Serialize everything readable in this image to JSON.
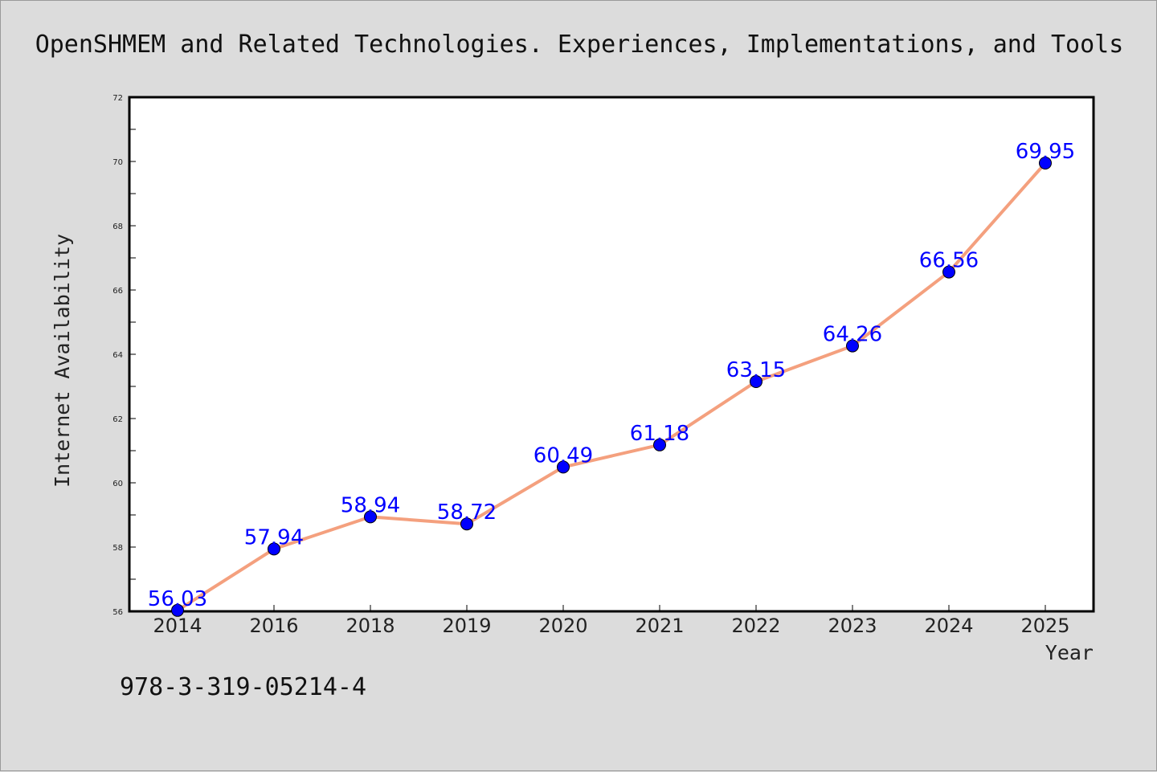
{
  "chart_data": {
    "type": "line",
    "title": "OpenSHMEM and Related Technologies. Experiences, Implementations, and Tools",
    "xlabel": "Year",
    "ylabel": "Internet Availability",
    "categories": [
      "2014",
      "2016",
      "2018",
      "2019",
      "2020",
      "2021",
      "2022",
      "2023",
      "2024",
      "2025"
    ],
    "series": [
      {
        "values": [
          56.03,
          57.94,
          58.94,
          58.72,
          60.49,
          61.18,
          63.15,
          64.26,
          66.56,
          69.95
        ],
        "labels": [
          "56.03",
          "57.94",
          "58.94",
          "58.72",
          "60.49",
          "61.18",
          "63.15",
          "64.26",
          "66.56",
          "69.95"
        ]
      }
    ],
    "ylim": [
      56,
      72
    ],
    "yticks": [
      "56",
      "58",
      "60",
      "62",
      "64",
      "66",
      "68",
      "70",
      "72"
    ],
    "grid": false,
    "line_color": "#f4a07e",
    "marker_color": "#0000ff",
    "label_color": "#0000ff"
  },
  "footer": {
    "isbn": "978-3-319-05214-4"
  }
}
